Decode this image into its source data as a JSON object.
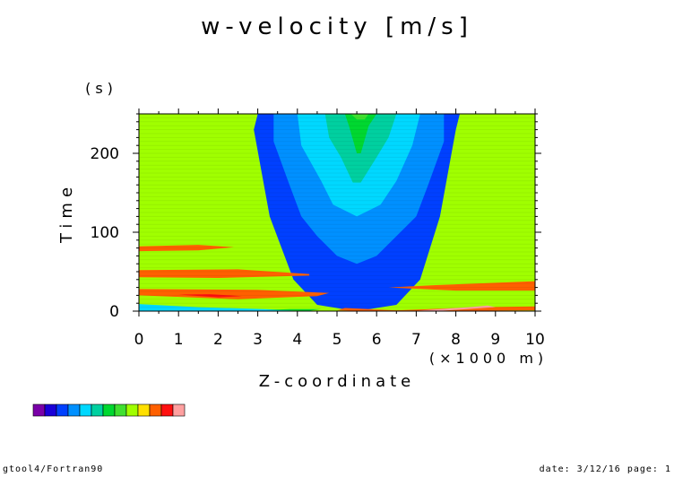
{
  "chart_data": {
    "type": "heatmap",
    "title": "w-velocity [m/s]",
    "xlabel": "Z-coordinate",
    "xunit": "(×1000 m)",
    "ylabel": "Time",
    "yunit": "(s)",
    "xlim": [
      0,
      10
    ],
    "ylim": [
      0,
      250
    ],
    "x_ticks": [
      "0",
      "1",
      "2",
      "3",
      "4",
      "5",
      "6",
      "7",
      "8",
      "9",
      "10"
    ],
    "y_ticks": [
      "0",
      "100",
      "200"
    ],
    "colorbar_colors": [
      "#7a00a8",
      "#1a00d8",
      "#0040ff",
      "#0090ff",
      "#00d8ff",
      "#00d0a0",
      "#00d830",
      "#40e030",
      "#a0ff00",
      "#ffe000",
      "#ff6000",
      "#ff1010",
      "#ffa0a0"
    ],
    "bands": [
      {
        "level": 3,
        "points": [
          [
            3.0,
            250
          ],
          [
            2.9,
            230
          ],
          [
            3.3,
            120
          ],
          [
            3.9,
            40
          ],
          [
            4.5,
            8
          ],
          [
            5.5,
            0
          ],
          [
            6.5,
            8
          ],
          [
            7.1,
            40
          ],
          [
            7.6,
            120
          ],
          [
            8.0,
            230
          ],
          [
            8.1,
            250
          ]
        ]
      },
      {
        "level": 4,
        "points": [
          [
            3.4,
            250
          ],
          [
            3.4,
            215
          ],
          [
            3.8,
            160
          ],
          [
            4.1,
            120
          ],
          [
            4.5,
            95
          ],
          [
            5.0,
            70
          ],
          [
            5.5,
            60
          ],
          [
            6.0,
            70
          ],
          [
            6.5,
            95
          ],
          [
            7.0,
            120
          ],
          [
            7.3,
            160
          ],
          [
            7.7,
            215
          ],
          [
            7.7,
            250
          ]
        ]
      },
      {
        "level": 5,
        "points": [
          [
            4.0,
            250
          ],
          [
            4.1,
            210
          ],
          [
            4.6,
            165
          ],
          [
            4.9,
            135
          ],
          [
            5.5,
            120
          ],
          [
            6.1,
            135
          ],
          [
            6.5,
            165
          ],
          [
            6.9,
            210
          ],
          [
            7.1,
            250
          ]
        ]
      },
      {
        "level": 6,
        "points": [
          [
            4.7,
            250
          ],
          [
            4.8,
            220
          ],
          [
            5.1,
            195
          ],
          [
            5.4,
            163
          ],
          [
            5.6,
            163
          ],
          [
            6.0,
            195
          ],
          [
            6.3,
            220
          ],
          [
            6.5,
            250
          ]
        ]
      },
      {
        "level": 7,
        "points": [
          [
            5.2,
            250
          ],
          [
            5.3,
            235
          ],
          [
            5.5,
            200
          ],
          [
            5.6,
            200
          ],
          [
            5.8,
            235
          ],
          [
            6.0,
            250
          ]
        ]
      },
      {
        "level": 8,
        "points": [
          [
            5.35,
            250
          ],
          [
            5.5,
            243
          ],
          [
            5.7,
            243
          ],
          [
            5.8,
            250
          ]
        ]
      },
      {
        "level": 11,
        "points": [
          [
            0,
            82
          ],
          [
            0,
            76
          ],
          [
            1.5,
            77
          ],
          [
            2.4,
            81
          ],
          [
            1.5,
            84
          ]
        ]
      },
      {
        "level": 11,
        "points": [
          [
            0,
            52
          ],
          [
            0,
            43
          ],
          [
            2.0,
            42
          ],
          [
            4.3,
            45
          ],
          [
            4.3,
            47
          ],
          [
            2.5,
            53
          ]
        ]
      },
      {
        "level": 11,
        "points": [
          [
            0,
            28
          ],
          [
            0,
            20
          ],
          [
            2.5,
            15
          ],
          [
            4.5,
            19
          ],
          [
            4.8,
            23
          ],
          [
            3.0,
            27
          ]
        ]
      },
      {
        "level": 12,
        "points": [
          [
            1.0,
            21
          ],
          [
            2.0,
            17.5
          ],
          [
            2.6,
            19
          ],
          [
            1.8,
            21.5
          ]
        ]
      },
      {
        "level": 11,
        "points": [
          [
            6.3,
            30
          ],
          [
            7.5,
            33
          ],
          [
            10,
            38
          ],
          [
            10,
            26
          ],
          [
            8.0,
            26
          ]
        ]
      },
      {
        "level": 11,
        "points": [
          [
            5.2,
            4
          ],
          [
            6.5,
            1
          ],
          [
            8.5,
            5
          ],
          [
            10,
            6
          ],
          [
            10,
            1
          ],
          [
            6.0,
            -0.5
          ],
          [
            5.0,
            1
          ]
        ]
      },
      {
        "level": 13,
        "points": [
          [
            6.0,
            1.5
          ],
          [
            7.0,
            0.5
          ],
          [
            8.3,
            5
          ],
          [
            8.8,
            7
          ],
          [
            9.0,
            5
          ],
          [
            7.5,
            0
          ]
        ]
      },
      {
        "level": 5,
        "points": [
          [
            0,
            9
          ],
          [
            1.5,
            5
          ],
          [
            3.5,
            2
          ],
          [
            4.0,
            0.5
          ],
          [
            0,
            0
          ]
        ]
      },
      {
        "level": 7,
        "points": [
          [
            3.2,
            1.5
          ],
          [
            4.3,
            0.5
          ],
          [
            4.6,
            2.5
          ],
          [
            3.8,
            2.5
          ]
        ]
      }
    ],
    "base_level": 9
  },
  "footer": {
    "left": "gtool4/Fortran90",
    "right": "date: 3/12/16 page: 1"
  }
}
